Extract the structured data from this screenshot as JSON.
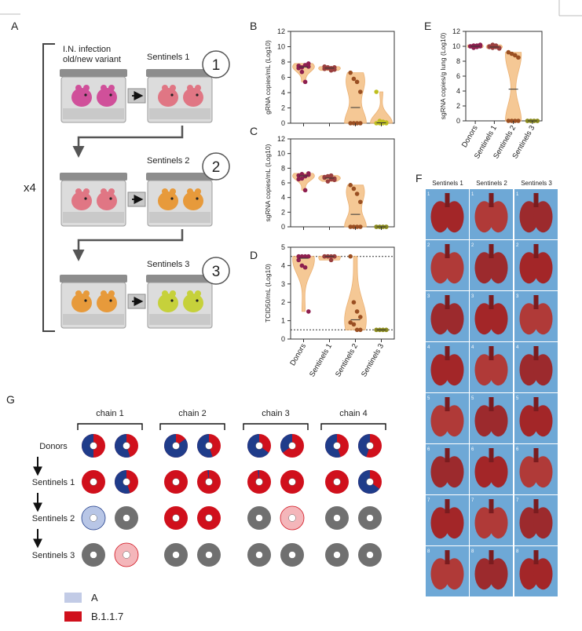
{
  "panel_letters": {
    "a": "A",
    "b": "B",
    "c": "C",
    "d": "D",
    "e": "E",
    "f": "F",
    "g": "G"
  },
  "panel_a": {
    "infection_label_1": "I.N. infection",
    "infection_label_2": "old/new variant",
    "sentinels_1": "Sentinels 1",
    "sentinels_2": "Sentinels 2",
    "sentinels_3": "Sentinels 3",
    "step_1": "1",
    "step_2": "2",
    "step_3": "3",
    "repeat": "x4",
    "colors": {
      "donor": "#d0509a",
      "s1": "#e07684",
      "s2": "#e79a3b",
      "s3": "#c6d13b"
    }
  },
  "x_tick_labels": [
    "Donors",
    "Sentinels 1",
    "Sentinels 2",
    "Sentinels 3"
  ],
  "chart_data": [
    {
      "id": "B",
      "type": "violin",
      "ylabel": "gRNA copies/mL (Log10)",
      "ylim": [
        0,
        12
      ],
      "yticks": [
        0,
        2,
        4,
        6,
        8,
        10,
        12
      ],
      "series": [
        {
          "values": [
            7.5,
            7.3,
            7.6,
            7.4,
            7.2,
            6.7,
            5.4,
            7.8
          ],
          "fill": "#8e1f4f"
        },
        {
          "values": [
            7.1,
            7.3,
            7.2,
            7.0,
            7.4,
            7.2,
            6.9,
            7.3
          ],
          "fill": "#9a3f3f"
        },
        {
          "values": [
            6.6,
            5.8,
            5.4,
            4.1,
            0,
            0,
            0,
            0
          ],
          "fill": "#9a4f22"
        },
        {
          "values": [
            4.1,
            0.3,
            0.2,
            0.1,
            0,
            0,
            0,
            0
          ],
          "fill": "#bfbf1f"
        }
      ]
    },
    {
      "id": "C",
      "type": "violin",
      "ylabel": "sgRNA copies/mL (Log10)",
      "ylim": [
        0,
        12
      ],
      "yticks": [
        0,
        2,
        4,
        6,
        8,
        10,
        12
      ],
      "series": [
        {
          "values": [
            7.0,
            7.2,
            6.9,
            7.1,
            6.5,
            6.6,
            5.0,
            7.3
          ],
          "fill": "#8e1f4f"
        },
        {
          "values": [
            6.7,
            6.9,
            6.5,
            6.6,
            6.8,
            6.2,
            7.0,
            6.4
          ],
          "fill": "#9a3f3f"
        },
        {
          "values": [
            5.7,
            5.2,
            4.5,
            3.4,
            0,
            0,
            0,
            0
          ],
          "fill": "#9a4f22"
        },
        {
          "values": [
            0,
            0,
            0,
            0,
            0,
            0,
            0,
            0
          ],
          "fill": "#8a8a1f"
        }
      ]
    },
    {
      "id": "D",
      "type": "violin",
      "ylabel": "TCID50/mL (Log10)",
      "ylim": [
        0,
        5
      ],
      "yticks": [
        0,
        1,
        2,
        3,
        4,
        5
      ],
      "reference_lines": [
        4.5,
        0.5
      ],
      "series": [
        {
          "values": [
            4.5,
            4.5,
            4.5,
            4.5,
            4.3,
            4.0,
            3.9,
            1.5
          ],
          "fill": "#8e1f4f"
        },
        {
          "values": [
            4.5,
            4.5,
            4.5,
            4.5,
            4.5,
            4.5,
            4.3,
            4.5
          ],
          "fill": "#9a3f3f"
        },
        {
          "values": [
            4.5,
            2.0,
            1.5,
            1.2,
            0.9,
            0.8,
            0.5,
            0.5
          ],
          "fill": "#9a4f22"
        },
        {
          "values": [
            0.5,
            0.5,
            0.5,
            0.5,
            0.5,
            0.5,
            0.5,
            0.5
          ],
          "fill": "#8a8a1f"
        }
      ]
    },
    {
      "id": "E",
      "type": "violin",
      "ylabel": "sgRNA copies/g lung (Log10)",
      "ylim": [
        0,
        12
      ],
      "yticks": [
        0,
        2,
        4,
        6,
        8,
        10,
        12
      ],
      "series": [
        {
          "values": [
            10.0,
            10.1,
            9.9,
            10.2,
            10.0,
            9.8,
            10.1,
            10.0
          ],
          "fill": "#8e1f4f"
        },
        {
          "values": [
            10.0,
            9.8,
            10.1,
            9.7,
            9.9,
            10.2,
            9.9,
            9.8
          ],
          "fill": "#9a3f3f"
        },
        {
          "values": [
            9.2,
            9.0,
            8.8,
            8.5,
            0,
            0,
            0,
            0
          ],
          "fill": "#9a4f22"
        },
        {
          "values": [
            0,
            0,
            0,
            0,
            0,
            0,
            0,
            0
          ],
          "fill": "#8a8a1f"
        }
      ]
    }
  ],
  "panel_f": {
    "columns": [
      "Sentinels 1",
      "Sentinels 2",
      "Sentinels 3"
    ],
    "rows": [
      "1",
      "2",
      "3",
      "4",
      "5",
      "6",
      "7",
      "8"
    ],
    "background": "#6ea8d6"
  },
  "panel_g": {
    "chains": [
      "chain 1",
      "chain 2",
      "chain 3",
      "chain 4"
    ],
    "rows": [
      "Donors",
      "Sentinels 1",
      "Sentinels 2",
      "Sentinels 3"
    ],
    "colors": {
      "A": "#1f3c8a",
      "B117": "#d0101c",
      "none": "#707070",
      "A_light": "#b8c6e6",
      "B117_light": "#f4b6ba"
    },
    "legend": [
      {
        "label": "A",
        "color": "#c2cbe6"
      },
      {
        "label": "B.1.1.7",
        "color": "#d0101c"
      }
    ],
    "fraction_A": [
      [
        [
          0.5,
          0.55
        ],
        [
          0.85,
          0.55
        ],
        [
          0.65,
          0.35
        ],
        [
          0.55,
          0.45
        ]
      ],
      [
        [
          0,
          0.55
        ],
        [
          0,
          0.02
        ],
        [
          0.02,
          0
        ],
        [
          0,
          0.65
        ]
      ],
      [
        [
          "A_light",
          "none"
        ],
        [
          0,
          0
        ],
        [
          "none",
          "B117_light"
        ],
        [
          "none",
          "none"
        ]
      ],
      [
        [
          "none",
          "B117_light"
        ],
        [
          "none",
          "none"
        ],
        [
          "none",
          "none"
        ],
        [
          "none",
          "none"
        ]
      ]
    ]
  }
}
